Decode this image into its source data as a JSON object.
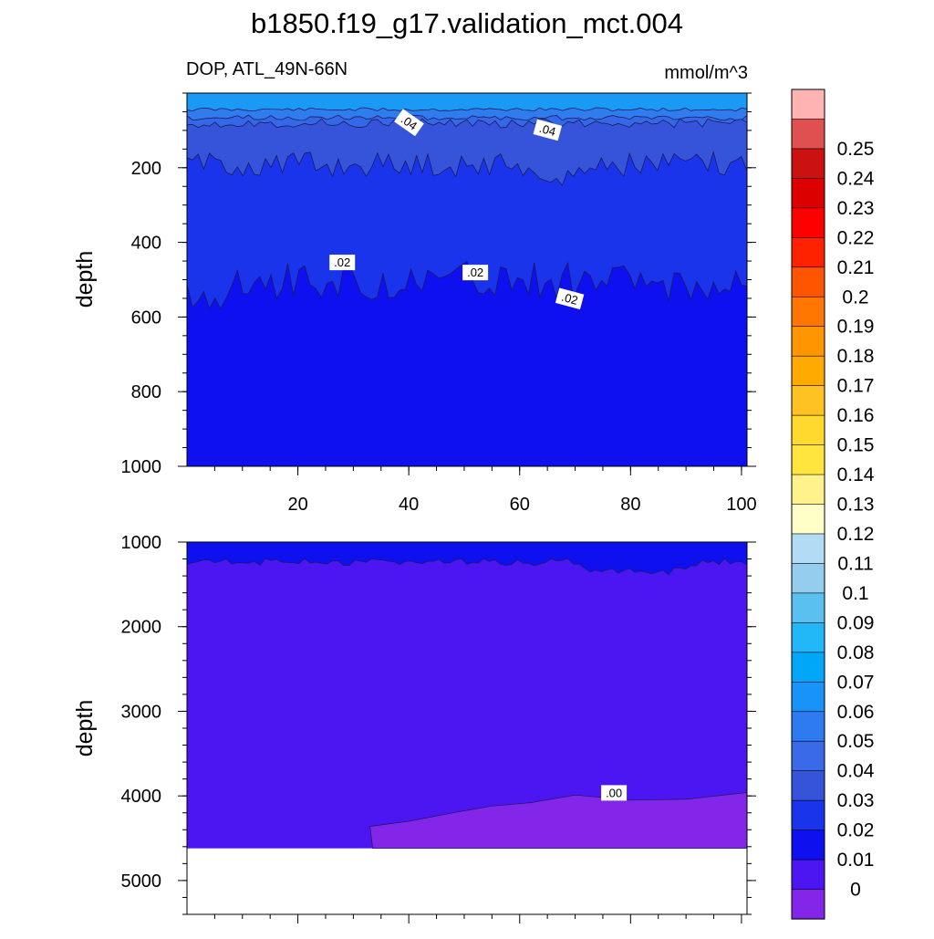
{
  "title": "b1850.f19_g17.validation_mct.004",
  "subtitle_left": "DOP, ATL_49N-66N",
  "subtitle_right": "mmol/m^3",
  "colorbar": {
    "labels": [
      "0.25",
      "0.24",
      "0.23",
      "0.22",
      "0.21",
      "0.2",
      "0.19",
      "0.18",
      "0.17",
      "0.16",
      "0.15",
      "0.14",
      "0.13",
      "0.12",
      "0.11",
      "0.1",
      "0.09",
      "0.08",
      "0.07",
      "0.06",
      "0.05",
      "0.04",
      "0.03",
      "0.02",
      "0.01",
      "0"
    ],
    "colors": [
      "#FFB3B3",
      "#E05050",
      "#CC1111",
      "#DD0000",
      "#FF0000",
      "#FF2200",
      "#FF5500",
      "#FF7700",
      "#FF9500",
      "#FFAA00",
      "#FFC222",
      "#FFD92E",
      "#FFE53E",
      "#FFF28C",
      "#FFFFC8",
      "#B2DCF3",
      "#94CDED",
      "#5AC0F0",
      "#22B8F8",
      "#00A6F8",
      "#1893FA",
      "#2E7AF0",
      "#3A6AE8",
      "#3654DA",
      "#1A34EC",
      "#0E10F0",
      "#4B16F2",
      "#8426EA"
    ]
  },
  "chart_data": [
    {
      "type": "contour",
      "panel": "top",
      "x_ticks": [
        "20",
        "40",
        "60",
        "80",
        "100"
      ],
      "y_ticks": [
        "200",
        "400",
        "600",
        "800",
        "1000"
      ],
      "xlim": [
        0,
        101
      ],
      "ylim": [
        0,
        1000
      ],
      "ylabel": "depth",
      "y_inverted": true,
      "contour_labels": [
        {
          "text": ".04",
          "x": 40,
          "y": 80
        },
        {
          "text": ".04",
          "x": 65,
          "y": 100
        },
        {
          "text": ".02",
          "x": 28,
          "y": 455
        },
        {
          "text": ".02",
          "x": 52,
          "y": 482
        },
        {
          "text": ".02",
          "x": 69,
          "y": 552
        }
      ]
    },
    {
      "type": "contour",
      "panel": "bottom",
      "y_ticks": [
        "1000",
        "2000",
        "3000",
        "4000",
        "5000"
      ],
      "xlim": [
        0,
        101
      ],
      "ylim": [
        1000,
        5400
      ],
      "ylabel": "depth",
      "y_inverted": true,
      "contour_labels": [
        {
          "text": ".00",
          "x": 77,
          "y": 3970
        }
      ]
    }
  ]
}
